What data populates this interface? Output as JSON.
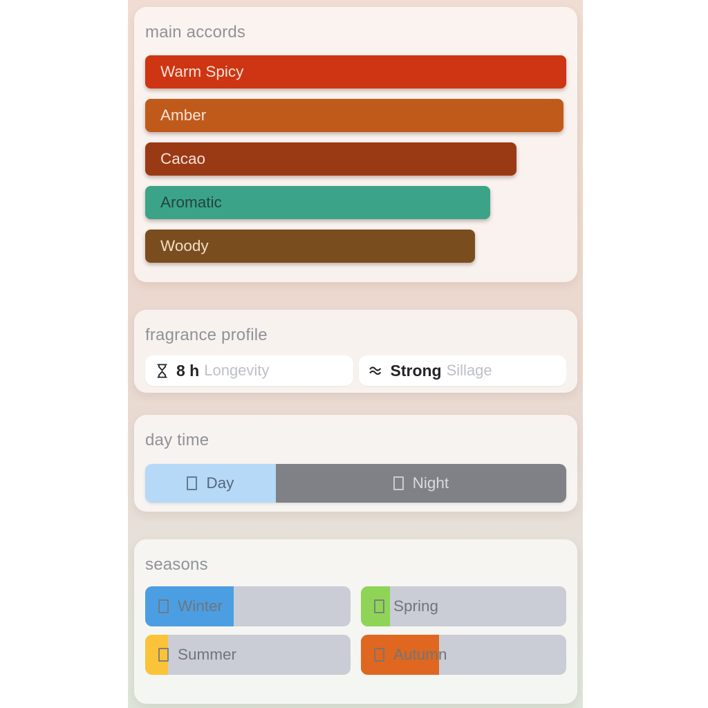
{
  "accords": {
    "title": "main accords",
    "bars": [
      {
        "label": "Warm Spicy",
        "width_pct": 100,
        "color": "#ce3513",
        "text_color": "#f6e3d7"
      },
      {
        "label": "Amber",
        "width_pct": 99.4,
        "color": "#c05a1b",
        "text_color": "#f6e3d7"
      },
      {
        "label": "Cacao",
        "width_pct": 88.2,
        "color": "#9a3a15",
        "text_color": "#f6e3d7"
      },
      {
        "label": "Aromatic",
        "width_pct": 82.0,
        "color": "#3ba388",
        "text_color": "#21453f"
      },
      {
        "label": "Woody",
        "width_pct": 78.4,
        "color": "#7a4d1f",
        "text_color": "#f0dfc8"
      }
    ]
  },
  "profile": {
    "title": "fragrance profile",
    "longevity": {
      "icon": "hourglass-icon",
      "value": "8 h",
      "label": "Longevity"
    },
    "sillage": {
      "icon": "waves-icon",
      "value": "Strong",
      "label": "Sillage"
    }
  },
  "daytime": {
    "title": "day time",
    "segments": [
      {
        "label": "Day",
        "width_pct": 31,
        "color": "#b5d9f7",
        "text_color": "#56687b"
      },
      {
        "label": "Night",
        "width_pct": 69,
        "color": "#7f8186",
        "text_color": "#d9dade"
      }
    ]
  },
  "seasons": {
    "title": "seasons",
    "track_color": "#cacdd5",
    "label_color": "#6f757e",
    "items": [
      {
        "label": "Winter",
        "fill_pct": 43,
        "color": "#4c9ee2"
      },
      {
        "label": "Spring",
        "fill_pct": 14,
        "color": "#8fd457"
      },
      {
        "label": "Summer",
        "fill_pct": 11,
        "color": "#fbc33a"
      },
      {
        "label": "Autumn",
        "fill_pct": 38,
        "color": "#df671f"
      }
    ]
  }
}
